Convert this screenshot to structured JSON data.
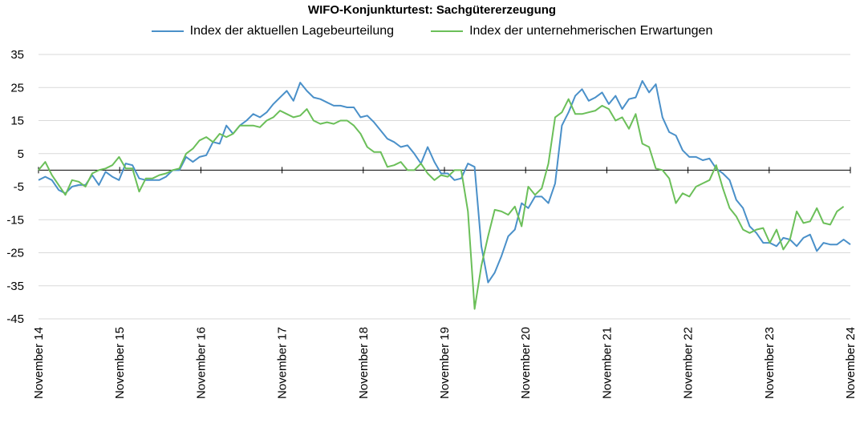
{
  "chart_data": {
    "type": "line",
    "title": "WIFO-Konjunkturtest: Sachgütererzeugung",
    "xlabel": "",
    "ylabel": "",
    "ylim": [
      -45,
      35
    ],
    "yticks": [
      35,
      25,
      15,
      5,
      -5,
      -15,
      -25,
      -35,
      -45
    ],
    "ytick_labels": [
      "35",
      "25",
      "15",
      "5",
      "-5",
      "-15",
      "-25",
      "-35",
      "-45"
    ],
    "xtick_labels": [
      "November 14",
      "November 15",
      "November 16",
      "November 17",
      "November 18",
      "November 19",
      "November 20",
      "November 21",
      "November 22",
      "November 23",
      "November 24"
    ],
    "grid": "horizontal",
    "legend_position": "top-center",
    "series": [
      {
        "name": "Index der aktuellen Lagebeurteilung",
        "color": "#4a90c9",
        "values": [
          -3,
          -2,
          -3,
          -6,
          -7,
          -5,
          -4.5,
          -4.5,
          -1.5,
          -4.5,
          -0.5,
          -2,
          -3,
          2,
          1.5,
          -2.5,
          -3,
          -3,
          -3,
          -2,
          0,
          0,
          4,
          2.5,
          4,
          4.5,
          8.5,
          8,
          13.5,
          11,
          13.5,
          15,
          17,
          16,
          17.5,
          20,
          22,
          24,
          21,
          26.5,
          24,
          22,
          21.5,
          20.5,
          19.5,
          19.5,
          19,
          19,
          16,
          16.5,
          14.5,
          12,
          9.5,
          8.5,
          7,
          7.5,
          5,
          2,
          7,
          2.5,
          -1,
          -1,
          -3,
          -2.5,
          2,
          1,
          -23,
          -34,
          -31,
          -26,
          -20,
          -18,
          -10,
          -11.5,
          -8,
          -8,
          -10,
          -4,
          13.5,
          17.5,
          22.5,
          24.5,
          21,
          22,
          23.5,
          20,
          22.5,
          18.5,
          21.5,
          22,
          27,
          23.5,
          26,
          16,
          11.5,
          10.5,
          6,
          4,
          4,
          3,
          3.5,
          0.5,
          -1,
          -3,
          -9,
          -11.5,
          -17,
          -19,
          -22,
          -22,
          -23,
          -20.5,
          -21,
          -23,
          -20.5,
          -19.5,
          -24.5,
          -22,
          -22.5,
          -22.5,
          -21,
          -22.5
        ]
      },
      {
        "name": "Index der unternehmerischen Erwartungen",
        "color": "#6bbf59",
        "values": [
          0,
          2.5,
          -1.5,
          -4.5,
          -7.5,
          -3,
          -3.5,
          -5,
          -1,
          0,
          0.5,
          1.5,
          4,
          0.5,
          0.5,
          -6.5,
          -2.5,
          -2.5,
          -1.5,
          -1,
          0,
          0.5,
          5,
          6.5,
          9,
          10,
          8.5,
          11,
          10,
          11,
          13.5,
          13.5,
          13.5,
          13,
          15,
          16,
          18,
          17,
          16,
          16.5,
          18.5,
          15,
          14,
          14.5,
          14,
          15,
          15,
          13.5,
          11,
          7,
          5.5,
          5.5,
          1,
          1.5,
          2.5,
          0,
          0,
          2,
          -1,
          -3,
          -1.5,
          -2,
          0,
          0,
          -12.5,
          -42,
          -29,
          -20,
          -12,
          -12.5,
          -13.5,
          -11,
          -17,
          -5,
          -7.5,
          -5.5,
          2,
          16,
          17.5,
          21.5,
          17,
          17,
          17.5,
          18,
          19.5,
          18.5,
          15,
          16,
          12.5,
          17,
          8,
          7,
          0.5,
          0,
          -2.5,
          -10,
          -7,
          -8,
          -5,
          -4,
          -3,
          1.5,
          -5.5,
          -11.5,
          -14,
          -18,
          -19,
          -18,
          -17.5,
          -22,
          -18,
          -24,
          -21,
          -12.5,
          -16,
          -15.5,
          -11.5,
          -16,
          -16.5,
          -12.5,
          -11
        ]
      }
    ]
  }
}
